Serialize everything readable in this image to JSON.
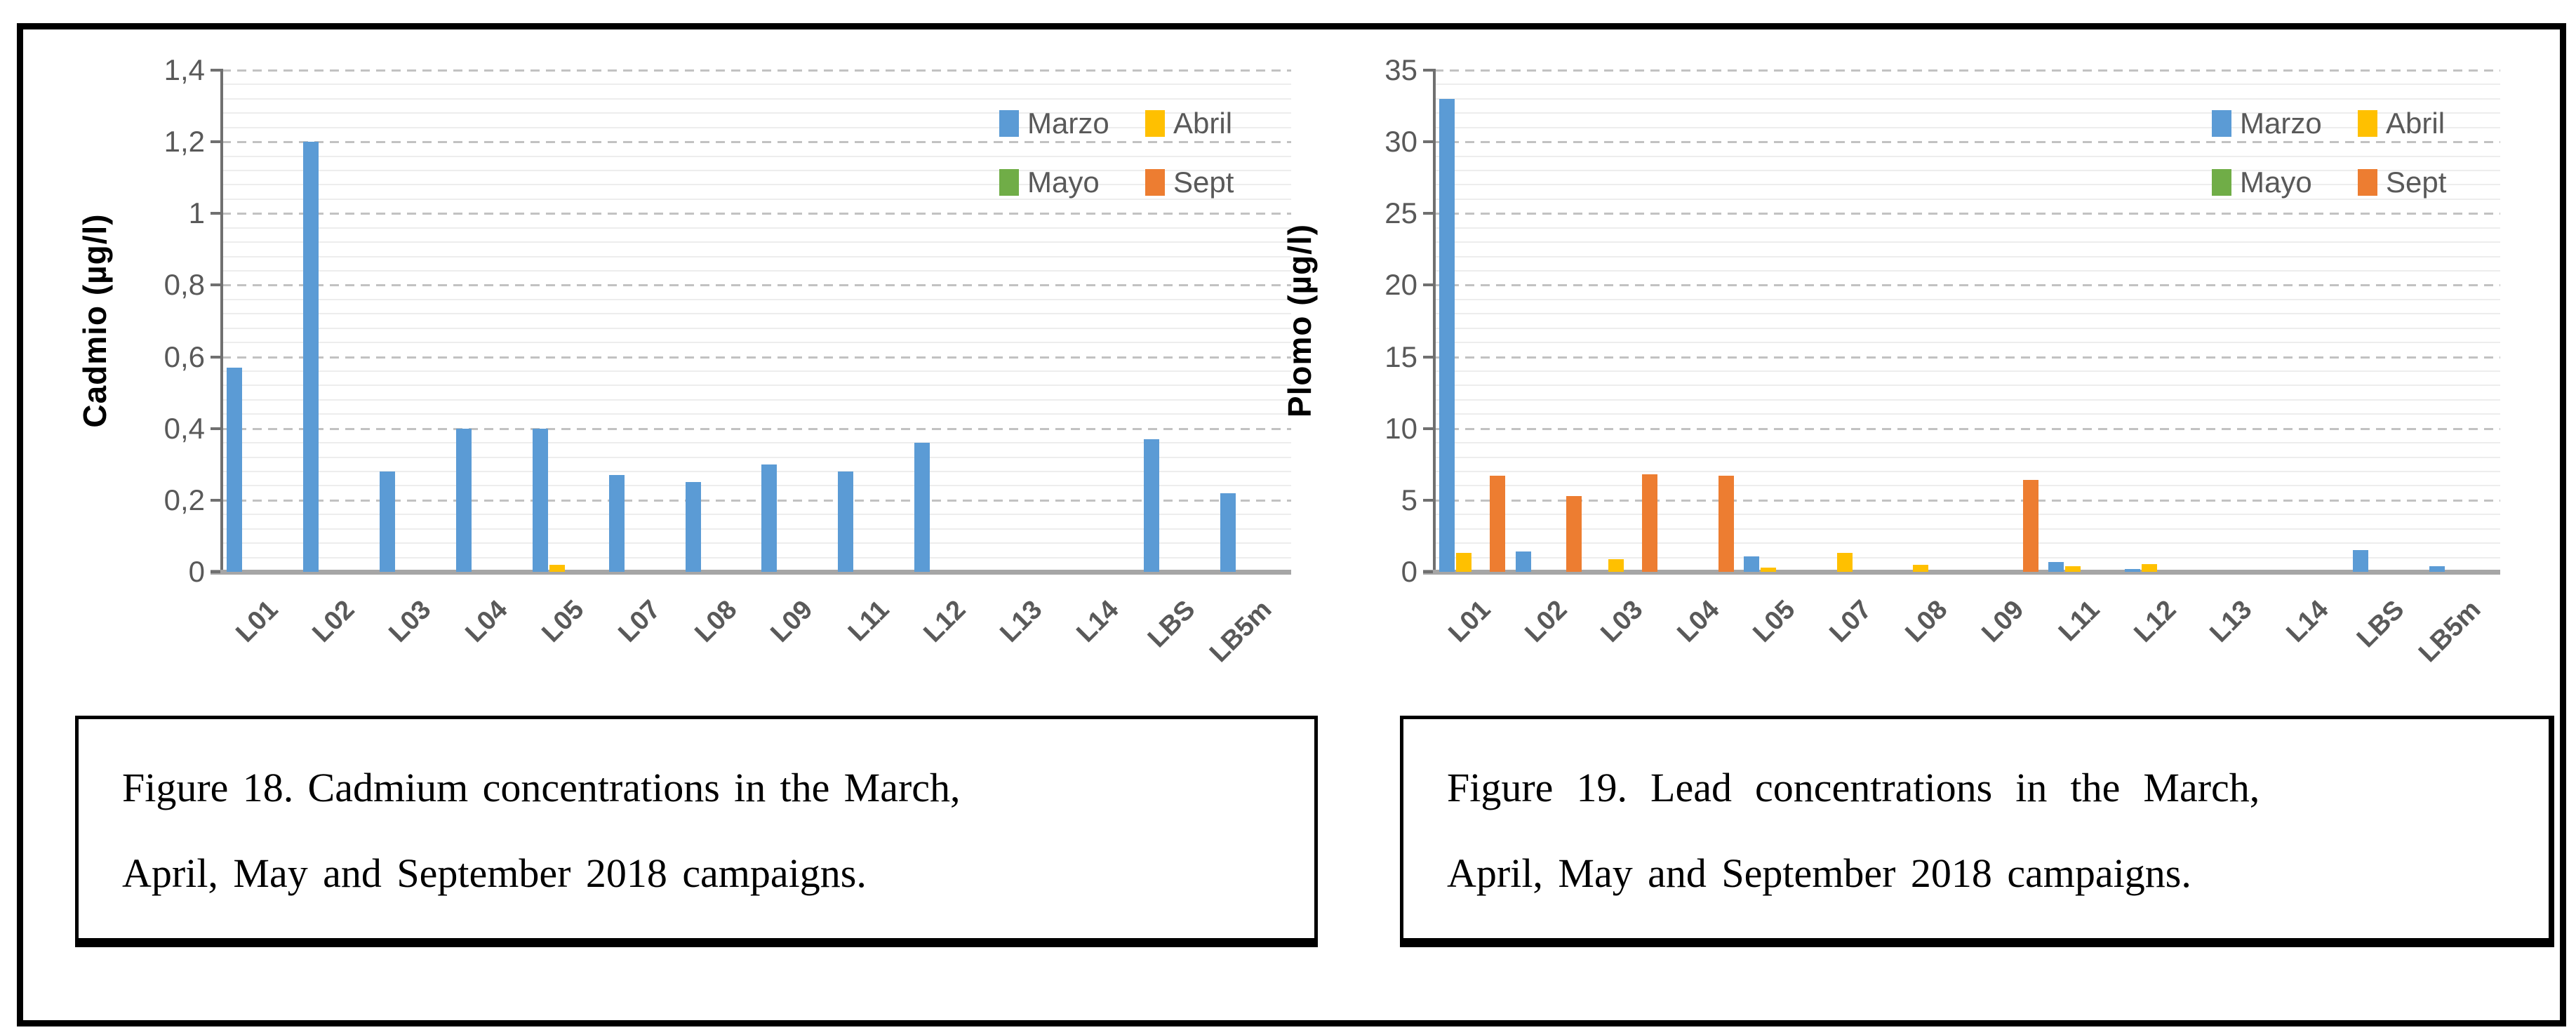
{
  "captions": [
    {
      "line1": "Figure 18. Cadmium concentrations in the March,",
      "line2": "April, May and September 2018 campaigns."
    },
    {
      "line1": "Figure 19. Lead concentrations in the March,",
      "line2": "April, May and September 2018 campaigns."
    }
  ],
  "chart_data": [
    {
      "type": "bar",
      "title": "",
      "xlabel": "",
      "ylabel": "Cadmio (µg/l)",
      "categories": [
        "L01",
        "L02",
        "L03",
        "L04",
        "L05",
        "L07",
        "L08",
        "L09",
        "L11",
        "L12",
        "L13",
        "L14",
        "LBS",
        "LB5m"
      ],
      "series": [
        {
          "name": "Marzo",
          "color": "#5B9BD5",
          "values": [
            0.57,
            1.2,
            0.28,
            0.4,
            0.4,
            0.27,
            0.25,
            0.3,
            0.28,
            0.36,
            0,
            0,
            0.37,
            0.22
          ]
        },
        {
          "name": "Abril",
          "color": "#FFC000",
          "values": [
            0,
            0,
            0,
            0,
            0.02,
            0,
            0,
            0,
            0,
            0,
            0,
            0,
            0,
            0
          ]
        },
        {
          "name": "Mayo",
          "color": "#70AD47",
          "values": [
            0,
            0,
            0,
            0,
            0,
            0,
            0,
            0,
            0,
            0,
            0,
            0,
            0,
            0
          ]
        },
        {
          "name": "Sept",
          "color": "#ED7D31",
          "values": [
            0,
            0,
            0,
            0,
            0,
            0,
            0,
            0,
            0,
            0,
            0,
            0,
            0,
            0
          ]
        }
      ],
      "ylim": [
        0,
        1.4
      ],
      "y_major_step": 0.2,
      "y_minor_step": 0.04,
      "decimal_style": "comma",
      "grid": "major-dashed, minor-solid",
      "legend_position": "top-right-inside"
    },
    {
      "type": "bar",
      "title": "",
      "xlabel": "",
      "ylabel": "Plomo (µg/l)",
      "categories": [
        "L01",
        "L02",
        "L03",
        "L04",
        "L05",
        "L07",
        "L08",
        "L09",
        "L11",
        "L12",
        "L13",
        "L14",
        "LBS",
        "LB5m"
      ],
      "series": [
        {
          "name": "Marzo",
          "color": "#5B9BD5",
          "values": [
            33,
            1.4,
            0,
            0,
            1.1,
            0,
            0,
            0,
            0.7,
            0.2,
            0,
            0,
            1.5,
            0.4
          ]
        },
        {
          "name": "Abril",
          "color": "#FFC000",
          "values": [
            1.3,
            0,
            0.9,
            0,
            0.3,
            1.3,
            0.5,
            0,
            0.4,
            0.55,
            0,
            0,
            0,
            0
          ]
        },
        {
          "name": "Mayo",
          "color": "#70AD47",
          "values": [
            0,
            0,
            0,
            0,
            0,
            0,
            0,
            0,
            0,
            0,
            0,
            0,
            0,
            0
          ]
        },
        {
          "name": "Sept",
          "color": "#ED7D31",
          "values": [
            6.7,
            5.3,
            6.8,
            6.7,
            0,
            0,
            0,
            6.4,
            0,
            0,
            0,
            0,
            0,
            0
          ]
        }
      ],
      "ylim": [
        0,
        35
      ],
      "y_major_step": 5,
      "y_minor_step": 1,
      "decimal_style": "plain",
      "grid": "major-dashed, minor-solid",
      "legend_position": "top-right-inside"
    }
  ]
}
